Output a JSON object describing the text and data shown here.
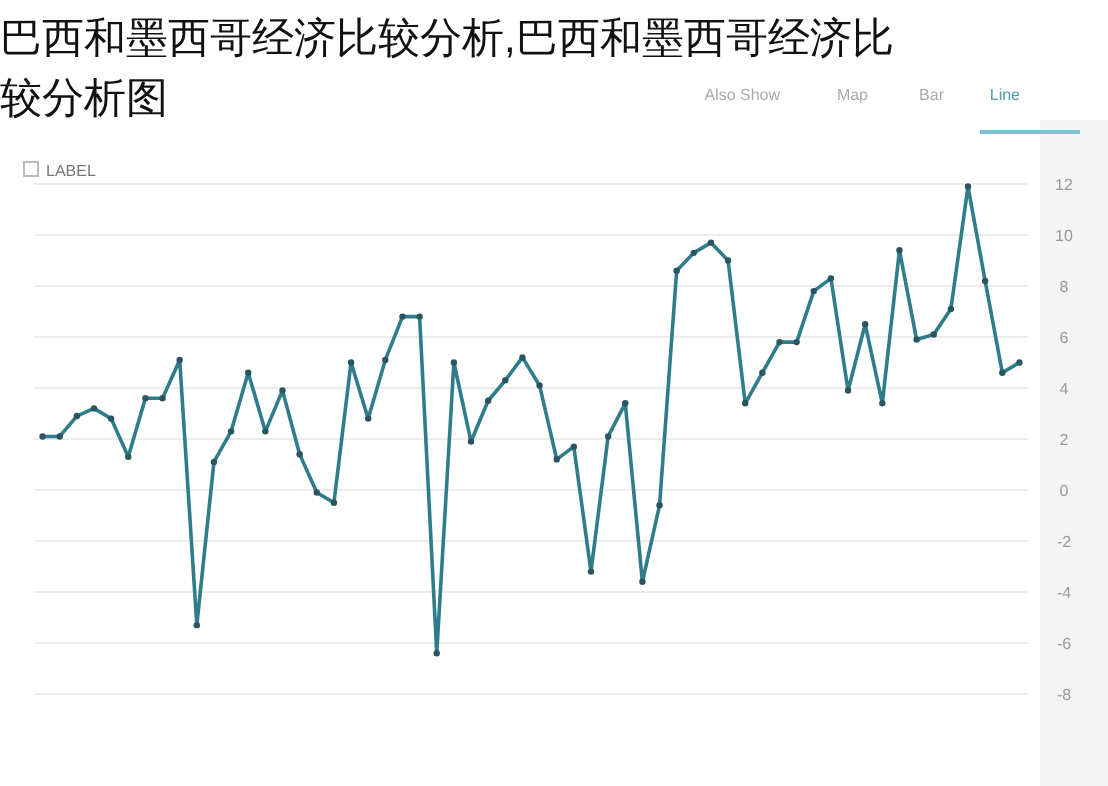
{
  "chart_data": {
    "type": "line",
    "title": "巴西和墨西哥经济比较分析,巴西和墨西哥经济比较分析图",
    "annotations": [
      "LABEL",
      "Line",
      "Bar",
      "Map",
      "Also Show"
    ],
    "categories": [
      null,
      null,
      null,
      null,
      null,
      null,
      null,
      null,
      null,
      null,
      null,
      null,
      null,
      null,
      null,
      null,
      null,
      null,
      null,
      null,
      null,
      null,
      null,
      null,
      null,
      null,
      null,
      null,
      null,
      null,
      null,
      null,
      null,
      null,
      null,
      null,
      null,
      null,
      null,
      null,
      null,
      null,
      null,
      null,
      null,
      null,
      null,
      null,
      null,
      null,
      null,
      null,
      null,
      null,
      null,
      null,
      null,
      null
    ],
    "values": [
      2.1,
      2.1,
      2.9,
      3.2,
      2.8,
      1.3,
      3.6,
      3.6,
      5.1,
      -5.3,
      1.1,
      2.3,
      4.6,
      2.3,
      3.9,
      1.4,
      -0.1,
      -0.5,
      5.0,
      2.8,
      5.1,
      6.8,
      6.8,
      -6.4,
      5.0,
      1.9,
      3.5,
      4.3,
      5.2,
      4.1,
      1.2,
      1.7,
      -3.2,
      2.1,
      3.4,
      -3.6,
      -0.6,
      8.6,
      9.3,
      9.7,
      9.0,
      3.4,
      4.6,
      5.8,
      5.8,
      7.8,
      8.3,
      3.9,
      6.5,
      3.4,
      9.4,
      5.9,
      6.1,
      7.1,
      11.9,
      8.2,
      4.6,
      5.0
    ],
    "color": "#2f7d8a",
    "marker": "circle",
    "grid": "y",
    "ylim": [
      -8,
      12
    ],
    "yticks": [
      -8,
      -6,
      -4,
      -2,
      0,
      2,
      4,
      6,
      8,
      10,
      12
    ]
  }
}
